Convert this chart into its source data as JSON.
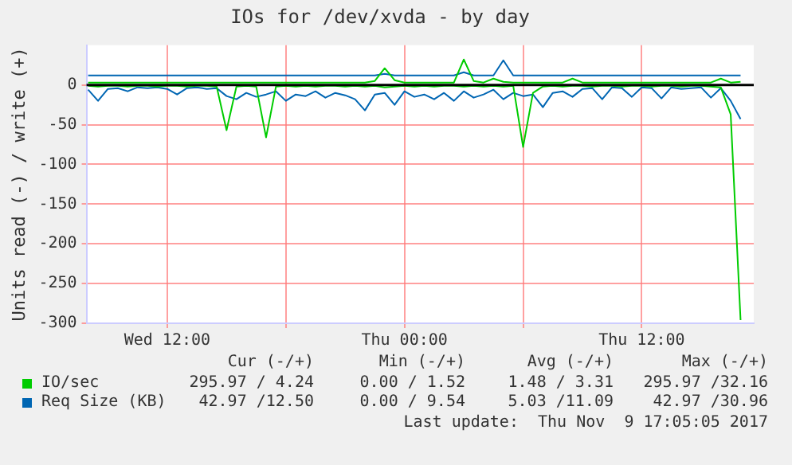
{
  "chart_data": {
    "type": "line",
    "title": "IOs for /dev/xvda - by day",
    "ylabel": "Units read (-) / write (+)",
    "x": [
      "2017-11-08T08:00",
      "2017-11-08T08:30",
      "2017-11-08T09:00",
      "2017-11-08T09:30",
      "2017-11-08T10:00",
      "2017-11-08T10:30",
      "2017-11-08T11:00",
      "2017-11-08T11:30",
      "2017-11-08T12:00",
      "2017-11-08T12:30",
      "2017-11-08T13:00",
      "2017-11-08T13:30",
      "2017-11-08T14:00",
      "2017-11-08T14:30",
      "2017-11-08T15:00",
      "2017-11-08T15:30",
      "2017-11-08T16:00",
      "2017-11-08T16:30",
      "2017-11-08T17:00",
      "2017-11-08T17:30",
      "2017-11-08T18:00",
      "2017-11-08T18:30",
      "2017-11-08T19:00",
      "2017-11-08T19:30",
      "2017-11-08T20:00",
      "2017-11-08T20:30",
      "2017-11-08T21:00",
      "2017-11-08T21:30",
      "2017-11-08T22:00",
      "2017-11-08T22:30",
      "2017-11-08T23:00",
      "2017-11-08T23:30",
      "2017-11-09T00:00",
      "2017-11-09T00:30",
      "2017-11-09T01:00",
      "2017-11-09T01:30",
      "2017-11-09T02:00",
      "2017-11-09T02:30",
      "2017-11-09T03:00",
      "2017-11-09T03:30",
      "2017-11-09T04:00",
      "2017-11-09T04:30",
      "2017-11-09T05:00",
      "2017-11-09T05:30",
      "2017-11-09T06:00",
      "2017-11-09T06:30",
      "2017-11-09T07:00",
      "2017-11-09T07:30",
      "2017-11-09T08:00",
      "2017-11-09T08:30",
      "2017-11-09T09:00",
      "2017-11-09T09:30",
      "2017-11-09T10:00",
      "2017-11-09T10:30",
      "2017-11-09T11:00",
      "2017-11-09T11:30",
      "2017-11-09T12:00",
      "2017-11-09T12:30",
      "2017-11-09T13:00",
      "2017-11-09T13:30",
      "2017-11-09T14:00",
      "2017-11-09T14:30",
      "2017-11-09T15:00",
      "2017-11-09T15:30",
      "2017-11-09T16:00",
      "2017-11-09T16:30",
      "2017-11-09T17:00"
    ],
    "xlim": [
      "2017-11-08T07:55",
      "2017-11-09T17:40"
    ],
    "xticks": [
      {
        "value": "2017-11-08T12:00",
        "label": "Wed 12:00"
      },
      {
        "value": "2017-11-08T18:00",
        "label": null
      },
      {
        "value": "2017-11-09T00:00",
        "label": "Thu 00:00"
      },
      {
        "value": "2017-11-09T06:00",
        "label": null
      },
      {
        "value": "2017-11-09T12:00",
        "label": "Thu 12:00"
      }
    ],
    "ylim": [
      -300,
      50
    ],
    "yticks": [
      -300,
      -250,
      -200,
      -150,
      -100,
      -50,
      0
    ],
    "grid": true,
    "legend": "bottom",
    "marker": "none",
    "line_style": "solid",
    "ref_lines": [
      {
        "axis": "y",
        "value": 0,
        "color": "#000000"
      }
    ],
    "series": [
      {
        "name": "IO/sec",
        "color": "#00cc00",
        "values": [
          -1,
          -2,
          -1,
          -1,
          -2,
          -1,
          -1,
          -2,
          -1,
          -1,
          -2,
          -1,
          -1,
          -2,
          -57,
          -2,
          -1,
          -2,
          -66,
          -2,
          -1,
          -2,
          -1,
          -2,
          -1,
          -1,
          -2,
          -1,
          -2,
          -1,
          -3,
          -2,
          -1,
          -2,
          -1,
          -2,
          -1,
          -1,
          -2,
          -1,
          -2,
          -1,
          -2,
          -1,
          -78,
          -10,
          -2,
          -1,
          -2,
          -1,
          -1,
          -2,
          -1,
          -1,
          -2,
          -1,
          -1,
          -2,
          -1,
          -1,
          -2,
          -1,
          -1,
          -2,
          -3,
          -37,
          -296
        ]
      },
      {
        "color": "#00cc00",
        "values": [
          3,
          3,
          3,
          3,
          3,
          3,
          3,
          3,
          3,
          3,
          3,
          3,
          3,
          3,
          3,
          3,
          3,
          3,
          3,
          3,
          3,
          3,
          3,
          3,
          3,
          3,
          3,
          3,
          3,
          5,
          21,
          6,
          3,
          3,
          3,
          3,
          3,
          3,
          32,
          5,
          3,
          8,
          4,
          3,
          3,
          3,
          3,
          3,
          3,
          8,
          3,
          3,
          3,
          3,
          3,
          3,
          3,
          3,
          3,
          3,
          3,
          3,
          3,
          3,
          8,
          3,
          4
        ]
      },
      {
        "name": "Req Size (KB)",
        "color": "#0066b3",
        "values": [
          -6,
          -20,
          -5,
          -4,
          -8,
          -3,
          -4,
          -3,
          -5,
          -12,
          -4,
          -3,
          -5,
          -4,
          -14,
          -18,
          -10,
          -15,
          -12,
          -8,
          -20,
          -12,
          -14,
          -8,
          -16,
          -10,
          -13,
          -18,
          -32,
          -12,
          -10,
          -25,
          -8,
          -15,
          -12,
          -18,
          -10,
          -20,
          -8,
          -16,
          -12,
          -6,
          -18,
          -10,
          -14,
          -12,
          -28,
          -10,
          -8,
          -15,
          -5,
          -4,
          -18,
          -3,
          -4,
          -15,
          -3,
          -4,
          -17,
          -3,
          -5,
          -4,
          -3,
          -16,
          -4,
          -20,
          -43
        ]
      },
      {
        "color": "#0066b3",
        "values": [
          12,
          12,
          12,
          12,
          12,
          12,
          12,
          12,
          12,
          12,
          12,
          12,
          12,
          12,
          12,
          12,
          12,
          12,
          12,
          12,
          12,
          12,
          12,
          12,
          12,
          12,
          12,
          12,
          12,
          12,
          14,
          12,
          12,
          12,
          12,
          12,
          12,
          12,
          16,
          12,
          12,
          12,
          31,
          12,
          12,
          12,
          12,
          12,
          12,
          12,
          12,
          12,
          12,
          12,
          12,
          12,
          12,
          12,
          12,
          12,
          12,
          12,
          12,
          12,
          12,
          12,
          12
        ]
      }
    ],
    "annotations": [
      "Cur (-/+)",
      "Min (-/+)",
      "Avg (-/+)",
      "Max (-/+)",
      "295.97 / 4.24",
      "0.00 / 1.52",
      "1.48 / 3.31",
      "295.97 /32.16",
      "42.97 /12.50",
      "0.00 / 9.54",
      "5.03 /11.09",
      "42.97 /30.96",
      "Last update:  Thu Nov  9 17:05:05 2017"
    ]
  }
}
